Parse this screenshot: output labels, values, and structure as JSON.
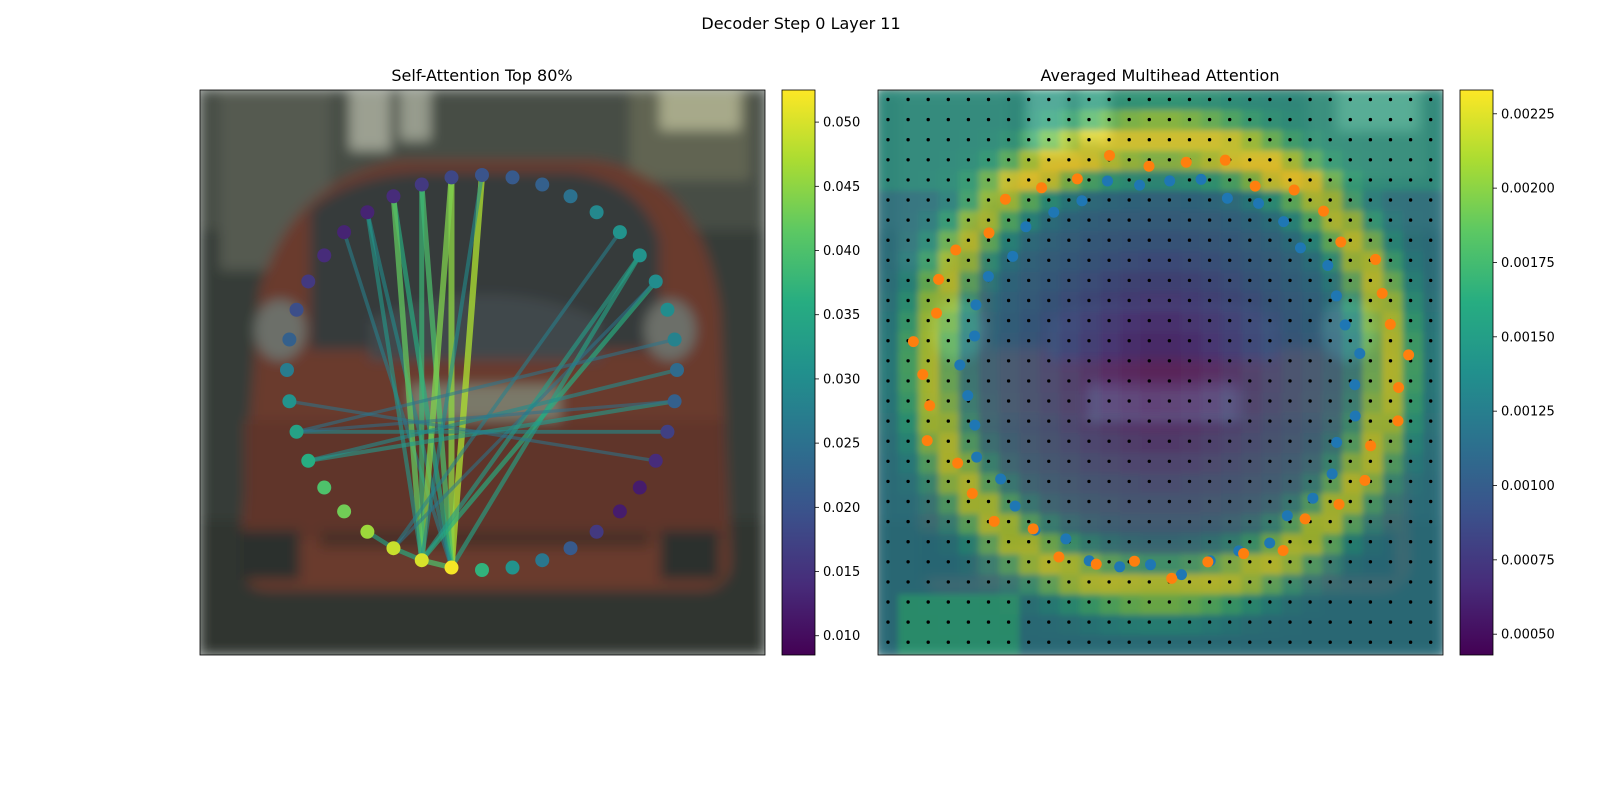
{
  "figure": {
    "title": "Decoder Step 0 Layer 11"
  },
  "chart_data": [
    {
      "type": "scatter",
      "title": "Self-Attention Top 80%",
      "background": "blurred photo of the rear of a red car on a city street",
      "colormap": "viridis",
      "points_count": 40,
      "colorbar": {
        "min": 0.0085,
        "max": 0.0525,
        "ticks": [
          "0.010",
          "0.015",
          "0.020",
          "0.025",
          "0.030",
          "0.035",
          "0.040",
          "0.045",
          "0.050"
        ]
      },
      "point_values": [
        0.052,
        0.05,
        0.049,
        0.046,
        0.043,
        0.04,
        0.036,
        0.034,
        0.031,
        0.027,
        0.022,
        0.019,
        0.016,
        0.014,
        0.013,
        0.013,
        0.014,
        0.016,
        0.018,
        0.02,
        0.021,
        0.022,
        0.025,
        0.029,
        0.031,
        0.031,
        0.03,
        0.03,
        0.028,
        0.024,
        0.022,
        0.017,
        0.014,
        0.012,
        0.012,
        0.016,
        0.021,
        0.026,
        0.031,
        0.037
      ],
      "attention_links": [
        {
          "from": 0,
          "to": 25,
          "weight": 0.034
        },
        {
          "from": 0,
          "to": 19,
          "weight": 0.047
        },
        {
          "from": 0,
          "to": 18,
          "weight": 0.045
        },
        {
          "from": 0,
          "to": 17,
          "weight": 0.04
        },
        {
          "from": 0,
          "to": 16,
          "weight": 0.036
        },
        {
          "from": 0,
          "to": 15,
          "weight": 0.03
        },
        {
          "from": 0,
          "to": 14,
          "weight": 0.028
        },
        {
          "from": 1,
          "to": 26,
          "weight": 0.036
        },
        {
          "from": 1,
          "to": 25,
          "weight": 0.033
        },
        {
          "from": 1,
          "to": 18,
          "weight": 0.044
        },
        {
          "from": 1,
          "to": 17,
          "weight": 0.038
        },
        {
          "from": 1,
          "to": 16,
          "weight": 0.042
        },
        {
          "from": 1,
          "to": 19,
          "weight": 0.03
        },
        {
          "from": 1,
          "to": 15,
          "weight": 0.032
        },
        {
          "from": 2,
          "to": 24,
          "weight": 0.028
        },
        {
          "from": 2,
          "to": 26,
          "weight": 0.026
        },
        {
          "from": 6,
          "to": 29,
          "weight": 0.03
        },
        {
          "from": 6,
          "to": 30,
          "weight": 0.032
        },
        {
          "from": 7,
          "to": 31,
          "weight": 0.03
        },
        {
          "from": 7,
          "to": 28,
          "weight": 0.026
        },
        {
          "from": 8,
          "to": 32,
          "weight": 0.026
        },
        {
          "from": 7,
          "to": 30,
          "weight": 0.025
        },
        {
          "from": 0,
          "to": 1,
          "weight": 0.04
        },
        {
          "from": 1,
          "to": 2,
          "weight": 0.036
        },
        {
          "from": 2,
          "to": 3,
          "weight": 0.034
        }
      ]
    },
    {
      "type": "heatmap",
      "title": "Averaged Multihead Attention",
      "background": "blurred photo of the rear of a red car on a city street",
      "colormap": "viridis",
      "grid": {
        "rows": 28,
        "cols": 28
      },
      "colorbar": {
        "min": 0.00043,
        "max": 0.00233,
        "ticks": [
          "0.00050",
          "0.00075",
          "0.00100",
          "0.00125",
          "0.00150",
          "0.00175",
          "0.00200",
          "0.00225"
        ]
      },
      "series": [
        {
          "color": "#1f77b4",
          "points": 40
        },
        {
          "color": "#ff7f0e",
          "points": 40
        }
      ]
    }
  ]
}
